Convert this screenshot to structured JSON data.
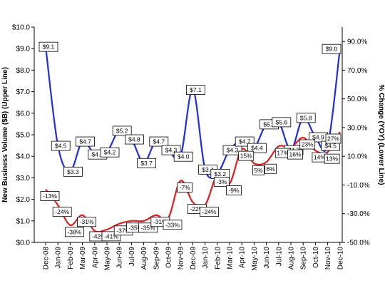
{
  "chart_data": {
    "type": "line",
    "title": "",
    "categories": [
      "Dec-08",
      "Jan-09",
      "Feb-09",
      "Mar-09",
      "Apr-09",
      "May-09",
      "Jun-09",
      "Jul-09",
      "Aug-09",
      "Sep-09",
      "Oct-09",
      "Nov-09",
      "Dec-09",
      "Jan-10",
      "Feb-10",
      "Mar-10",
      "Apr-10",
      "May-10",
      "Jun-10",
      "Jul-10",
      "Aug-10",
      "Sep-10",
      "Oct-10",
      "Nov-10",
      "Dec-10"
    ],
    "y_left": {
      "label": "New Business Volume ($B) (Upper Line)",
      "ylim": [
        0,
        10
      ],
      "ticks": [
        "$0.0",
        "$1.0",
        "$2.0",
        "$3.0",
        "$4.0",
        "$5.0",
        "$6.0",
        "$7.0",
        "$8.0",
        "$9.0",
        "$10.0"
      ]
    },
    "y_right": {
      "label": "% Change (YOY) (Lower Line)",
      "ylim": [
        -50,
        100
      ],
      "ticks": [
        "-50.0%",
        "-30.0%",
        "-10.0%",
        "10.0%",
        "30.0%",
        "50.0%",
        "70.0%",
        "90.0%"
      ]
    },
    "series": [
      {
        "axis": "left",
        "color": "#1f2ee0",
        "values": [
          9.1,
          4.5,
          3.3,
          4.7,
          4.1,
          4.2,
          5.2,
          4.8,
          3.7,
          4.7,
          4.3,
          4.0,
          7.1,
          3.4,
          3.2,
          4.3,
          4.7,
          4.4,
          5.5,
          5.6,
          4.3,
          5.8,
          4.9,
          4.5,
          9.0
        ],
        "labels": [
          "$9.1",
          "$4.5",
          "$3.3",
          "$4.7",
          "$4.1",
          "$4.2",
          "$5.2",
          "$4.8",
          "$3.7",
          "$4.7",
          "$4.3",
          "$4.0",
          "$7.1",
          "$3.4",
          "$3.2",
          "$4.3",
          "$4.7",
          "$4.4",
          "$5.5",
          "$5.6",
          "$4.3",
          "$5.8",
          "$4.9",
          "$4.5",
          "$9.0"
        ]
      },
      {
        "axis": "right",
        "color": "#e0201f",
        "values": [
          -13,
          -24,
          -38,
          -31,
          -42,
          -41,
          -37,
          -35,
          -35,
          -31,
          -33,
          -7,
          -22,
          -24,
          -3,
          -9,
          15,
          5,
          6,
          17,
          16,
          23,
          14,
          13,
          27
        ],
        "labels": [
          "-13%",
          "-24%",
          "-38%",
          "-31%",
          "-42%",
          "-41%",
          "-37%",
          "-35%",
          "-35%",
          "-31%",
          "-33%",
          "-7%",
          "-22%",
          "-24%",
          "-3%",
          "-9%",
          "15%",
          "5%",
          "6%",
          "17%",
          "16%",
          "23%",
          "14%",
          "13%",
          "27%"
        ]
      }
    ],
    "grid": false,
    "legend": "none"
  }
}
